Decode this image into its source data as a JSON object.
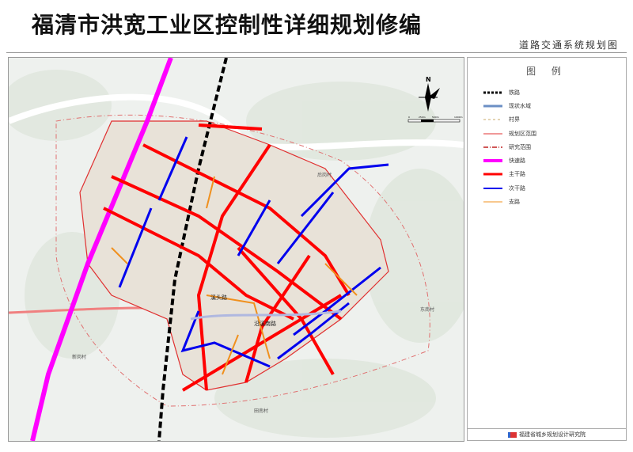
{
  "title": "福清市洪宽工业区控制性详细规划修编",
  "subtitle": "道路交通系统规划图",
  "legend": {
    "heading": "图  例",
    "items": [
      {
        "label": "铁路",
        "color": "#000000",
        "style": "dashed-thick"
      },
      {
        "label": "现状水域",
        "color": "#6b8fc4",
        "style": "thick"
      },
      {
        "label": "村界",
        "color": "#c8a86a",
        "style": "dashed"
      },
      {
        "label": "规划区范围",
        "color": "#e03030",
        "style": "thin"
      },
      {
        "label": "研究范围",
        "color": "#c02020",
        "style": "dashdot"
      },
      {
        "label": "快速路",
        "color": "#ff00ff",
        "style": "thick"
      },
      {
        "label": "主干路",
        "color": "#ff0000",
        "style": "thick"
      },
      {
        "label": "次干路",
        "color": "#0000ee",
        "style": "medium"
      },
      {
        "label": "支路",
        "color": "#f0901e",
        "style": "thin"
      }
    ]
  },
  "compass": {
    "north": "N",
    "scale_labels": [
      "0",
      "250m",
      "500m",
      "1000m"
    ]
  },
  "map_labels": [
    "溪头路",
    "沿溪南路",
    "东南村",
    "新岗村",
    "田南村",
    "后岗村"
  ],
  "footer": "福建省城乡规划设计研究院"
}
